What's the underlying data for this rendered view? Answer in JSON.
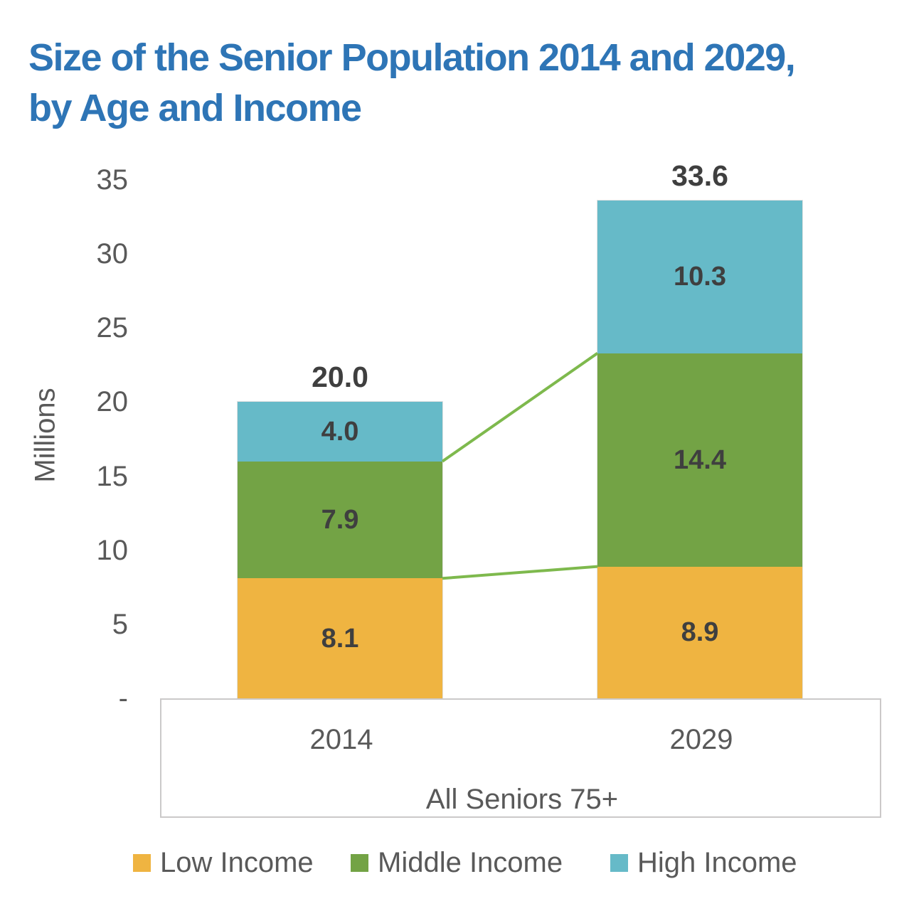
{
  "title": "Size of the Senior Population 2014 and 2029, by Age and Income",
  "colors": {
    "title_blue": "#2E75B6",
    "axis_text_gray": "#595959",
    "data_label_gray": "#3F3F3F",
    "low_income_orange": "#EFB441",
    "middle_income_green": "#73A345",
    "high_income_teal": "#66BAC8",
    "connector_line_green": "#7EB94D",
    "axis_box_border_gray": "#CBC9C9",
    "background": "#FFFFFF"
  },
  "chart_data": {
    "type": "bar",
    "stacked": true,
    "title": "Size of the Senior Population 2014 and 2029, by Age and Income",
    "ylabel": "Millions",
    "xlabel": "",
    "ylim": [
      0,
      35
    ],
    "grid": false,
    "legend_position": "bottom",
    "series_connector_lines": true,
    "categories": [
      "2014",
      "2029"
    ],
    "group_label": "All Seniors 75+",
    "series": [
      {
        "name": "Low Income",
        "color": "#EFB441",
        "values": [
          8.1,
          8.9
        ],
        "labels": [
          "8.1",
          "8.9"
        ]
      },
      {
        "name": "Middle Income",
        "color": "#73A345",
        "values": [
          7.9,
          14.4
        ],
        "labels": [
          "7.9",
          "14.4"
        ]
      },
      {
        "name": "High Income",
        "color": "#66BAC8",
        "values": [
          4.0,
          10.3
        ],
        "labels": [
          "4.0",
          "10.3"
        ]
      }
    ],
    "totals": {
      "values": [
        20.0,
        33.6
      ],
      "labels": [
        "20.0",
        "33.6"
      ]
    },
    "yticks": [
      {
        "label": "35",
        "value": 35
      },
      {
        "label": "30",
        "value": 30
      },
      {
        "label": "25",
        "value": 25
      },
      {
        "label": "20",
        "value": 20
      },
      {
        "label": "15",
        "value": 15
      },
      {
        "label": "10",
        "value": 10
      },
      {
        "label": "5",
        "value": 5
      },
      {
        "label": "-",
        "value": 0
      }
    ]
  }
}
